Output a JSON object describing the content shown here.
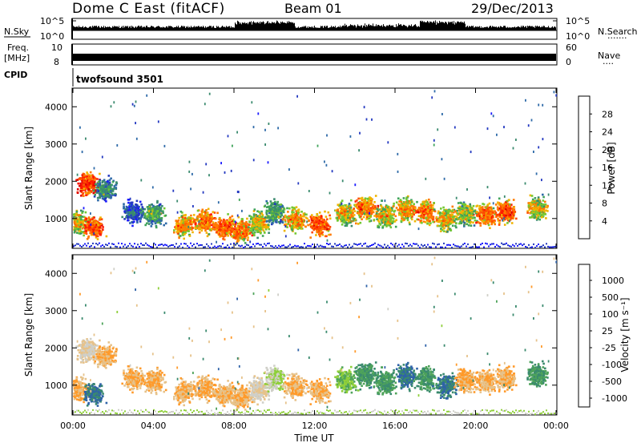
{
  "header": {
    "station": "Dome C East (fitACF)",
    "beam": "Beam 01",
    "date": "29/Dec/2013"
  },
  "top_panels": {
    "nsky_label": "N.Sky",
    "nsky_tick_top": "10^5",
    "nsky_tick_bottom": "10^0",
    "nsearch_label": "N.Search",
    "nsearch_dots": ".......",
    "freq_label_line1": "Freq.",
    "freq_label_line2": "[MHz]",
    "freq_tick_top": "10",
    "freq_tick_bottom": "8",
    "nave_tick_top": "60",
    "nave_tick_bottom": "0",
    "nave_label": "Nave",
    "nave_dots": "....",
    "cpid_label": "CPID",
    "cpid_value": "twofsound 3501"
  },
  "colors": {
    "power_scale": [
      "#1a1aff",
      "#2338c0",
      "#2e6aa8",
      "#3a8a6e",
      "#3fa35a",
      "#72c832",
      "#f0b400",
      "#ff7a00",
      "#ff4a00",
      "#ff1a00",
      "#dd0000"
    ],
    "velocity_scale": [
      "#2a3fc9",
      "#2e62a8",
      "#3a8a6e",
      "#4ea35a",
      "#8fcf3a",
      "#cfcfc8",
      "#e6c28a",
      "#ff9a2a",
      "#ff7a14",
      "#ff3a10",
      "#e80000"
    ]
  },
  "chart_data": [
    {
      "type": "heatmap",
      "title": "",
      "xlabel": "Time UT",
      "ylabel": "Slant Range [km]",
      "xlim": [
        "00:00",
        "24:00"
      ],
      "ylim": [
        200,
        4500
      ],
      "x_ticks": [
        "00:00",
        "04:00",
        "08:00",
        "12:00",
        "16:00",
        "20:00",
        "00:00"
      ],
      "y_ticks": [
        1000,
        2000,
        3000,
        4000
      ],
      "colorbar": {
        "label": "Power [dB]",
        "range": [
          0,
          32
        ],
        "ticks": [
          4,
          8,
          12,
          16,
          20,
          24,
          28
        ]
      },
      "series": [
        {
          "name": "echo region",
          "time_hr": [
            0.2,
            0.7,
            1.0,
            1.6,
            3.0,
            4.0,
            5.5,
            6.5,
            7.5,
            8.3,
            9.2,
            10.0,
            11.0,
            12.2,
            13.5,
            14.5,
            15.5,
            16.5,
            17.5,
            18.5,
            19.5,
            20.5,
            21.5,
            23.0
          ],
          "range_center_km": [
            900,
            1950,
            800,
            1800,
            1200,
            1150,
            850,
            950,
            800,
            700,
            900,
            1200,
            1000,
            850,
            1150,
            1300,
            1100,
            1250,
            1200,
            1000,
            1150,
            1100,
            1200,
            1300
          ],
          "power_db": [
            20,
            28,
            26,
            12,
            8,
            14,
            22,
            24,
            26,
            24,
            20,
            14,
            22,
            26,
            20,
            24,
            20,
            22,
            24,
            20,
            18,
            24,
            26,
            20
          ]
        }
      ]
    },
    {
      "type": "heatmap",
      "title": "",
      "xlabel": "Time UT",
      "ylabel": "Slant Range [km]",
      "xlim": [
        "00:00",
        "24:00"
      ],
      "ylim": [
        200,
        4500
      ],
      "x_ticks": [
        "00:00",
        "04:00",
        "08:00",
        "12:00",
        "16:00",
        "20:00",
        "00:00"
      ],
      "y_ticks": [
        1000,
        2000,
        3000,
        4000
      ],
      "colorbar": {
        "label": "Velocity [m s⁻¹]",
        "ticks": [
          1000,
          500,
          100,
          25,
          -25,
          -100,
          -500,
          -1000
        ]
      },
      "series": [
        {
          "name": "echo region",
          "time_hr": [
            0.2,
            0.7,
            1.0,
            1.6,
            3.0,
            4.0,
            5.5,
            6.5,
            7.5,
            8.3,
            9.2,
            10.0,
            11.0,
            12.2,
            13.5,
            14.5,
            15.5,
            16.5,
            17.5,
            18.5,
            19.5,
            20.5,
            21.5,
            23.0
          ],
          "range_center_km": [
            900,
            1950,
            800,
            1800,
            1200,
            1150,
            850,
            950,
            800,
            700,
            900,
            1200,
            1000,
            850,
            1150,
            1300,
            1100,
            1250,
            1200,
            1000,
            1150,
            1100,
            1200,
            1300
          ],
          "velocity_ms": [
            -500,
            -100,
            500,
            -500,
            -500,
            -500,
            -500,
            -500,
            -500,
            -500,
            -100,
            -25,
            -500,
            -500,
            25,
            100,
            100,
            500,
            100,
            500,
            -500,
            -500,
            -500,
            100
          ]
        }
      ]
    }
  ]
}
